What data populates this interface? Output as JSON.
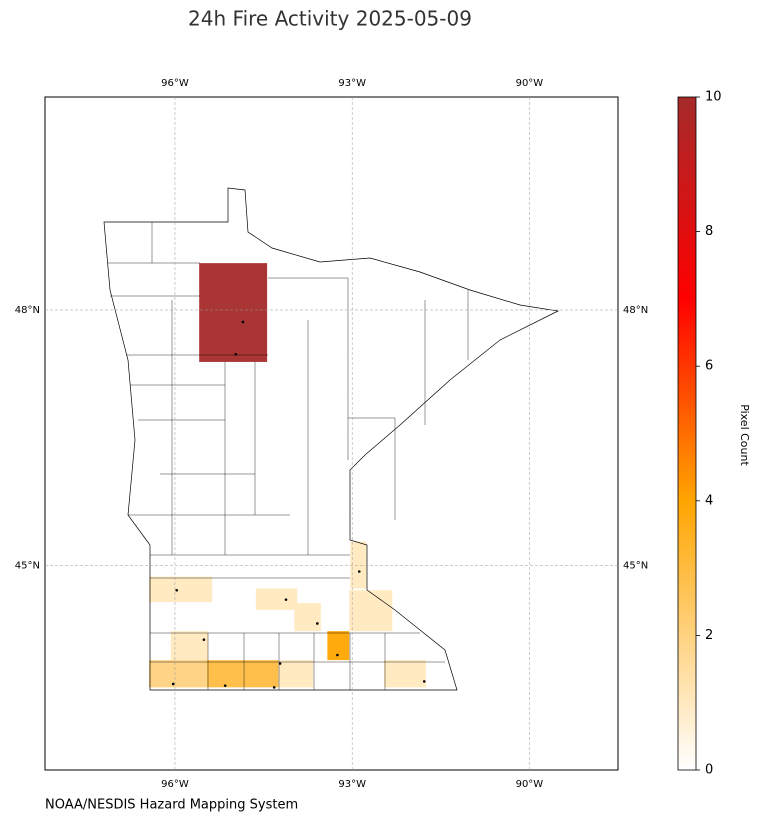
{
  "title": "24h Fire Activity 2025-05-09",
  "source": "NOAA/NESDIS Hazard Mapping System",
  "map": {
    "xlim": [
      -98.2,
      -88.5
    ],
    "ylim": [
      42.6,
      50.5
    ],
    "xticks": [
      {
        "value": -96,
        "label": "96°W"
      },
      {
        "value": -93,
        "label": "93°W"
      },
      {
        "value": -90,
        "label": "90°W"
      }
    ],
    "yticks": [
      {
        "value": 48,
        "label": "48°N"
      },
      {
        "value": 45,
        "label": "45°N"
      }
    ],
    "grid": true,
    "counties": [
      {
        "value": 10,
        "lon": [
          -95.59,
          -94.44
        ],
        "lat": [
          47.39,
          48.55
        ]
      },
      {
        "value": 1,
        "lon": [
          -96.44,
          -95.37
        ],
        "lat": [
          44.57,
          44.87
        ]
      },
      {
        "value": 1,
        "lon": [
          -94.63,
          -93.93
        ],
        "lat": [
          44.48,
          44.73
        ]
      },
      {
        "value": 1,
        "lon": [
          -93.03,
          -92.76
        ],
        "lat": [
          44.73,
          45.28
        ]
      },
      {
        "value": 1,
        "lon": [
          -93.98,
          -93.53
        ],
        "lat": [
          44.23,
          44.56
        ]
      },
      {
        "value": 1,
        "lon": [
          -93.05,
          -92.32
        ],
        "lat": [
          44.23,
          44.71
        ]
      },
      {
        "value": 1,
        "lon": [
          -96.07,
          -95.44
        ],
        "lat": [
          43.89,
          44.23
        ]
      },
      {
        "value": 4,
        "lon": [
          -93.42,
          -93.05
        ],
        "lat": [
          43.89,
          44.23
        ]
      },
      {
        "value": 2,
        "lon": [
          -96.44,
          -95.46
        ],
        "lat": [
          43.57,
          43.89
        ]
      },
      {
        "value": 3,
        "lon": [
          -95.46,
          -94.85
        ],
        "lat": [
          43.57,
          43.89
        ]
      },
      {
        "value": 3,
        "lon": [
          -94.85,
          -94.25
        ],
        "lat": [
          43.57,
          43.89
        ]
      },
      {
        "value": 1,
        "lon": [
          -94.25,
          -93.66
        ],
        "lat": [
          43.57,
          43.89
        ]
      },
      {
        "value": 1,
        "lon": [
          -92.46,
          -91.75
        ],
        "lat": [
          43.57,
          43.89
        ]
      }
    ],
    "fires": [
      {
        "lon": -94.85,
        "lat": 47.86
      },
      {
        "lon": -94.97,
        "lat": 47.48
      },
      {
        "lon": -95.97,
        "lat": 44.71
      },
      {
        "lon": -94.12,
        "lat": 44.6
      },
      {
        "lon": -92.88,
        "lat": 44.93
      },
      {
        "lon": -93.59,
        "lat": 44.32
      },
      {
        "lon": -95.51,
        "lat": 44.13
      },
      {
        "lon": -93.25,
        "lat": 43.95
      },
      {
        "lon": -96.03,
        "lat": 43.61
      },
      {
        "lon": -95.15,
        "lat": 43.59
      },
      {
        "lon": -94.32,
        "lat": 43.57
      },
      {
        "lon": -94.22,
        "lat": 43.85
      },
      {
        "lon": -91.78,
        "lat": 43.64
      }
    ]
  },
  "colorbar": {
    "label": "Pixel Count",
    "lim": [
      0,
      10
    ],
    "ticks": [
      0,
      2,
      4,
      6,
      8,
      10
    ],
    "colormap": [
      {
        "value": 0,
        "color": "#ffffff"
      },
      {
        "value": 4,
        "color": "#ffa500"
      },
      {
        "value": 7,
        "color": "#ff0000"
      },
      {
        "value": 10,
        "color": "#a52a2a"
      }
    ]
  }
}
